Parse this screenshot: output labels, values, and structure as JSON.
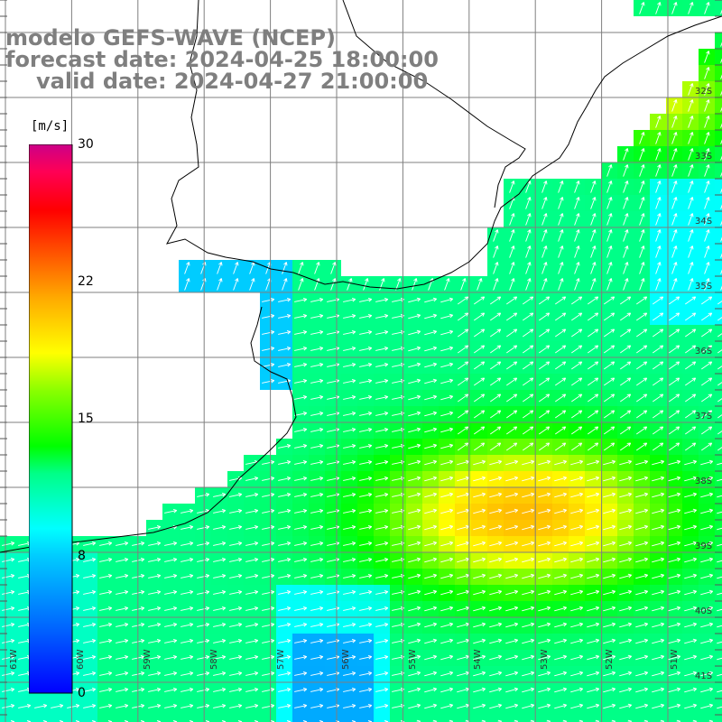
{
  "title": {
    "line1": "modelo GEFS-WAVE (NCEP)",
    "line2": "forecast date: 2024-04-25 18:00:00",
    "line3": "valid date: 2024-04-27 21:00:00"
  },
  "colorbar": {
    "unit": "[m/s]",
    "ticks": [
      "30",
      "22",
      "15",
      "8",
      "0"
    ],
    "colors": [
      "#0000ff",
      "#00aaff",
      "#00ffff",
      "#00ff80",
      "#00ff00",
      "#80ff00",
      "#ffff00",
      "#ffaa00",
      "#ff5500",
      "#ff0000",
      "#ff0066",
      "#cc0088"
    ]
  },
  "lat_labels": [
    "32S",
    "33S",
    "34S",
    "35S",
    "36S",
    "37S",
    "38S",
    "39S",
    "40S",
    "41S"
  ],
  "lon_labels": [
    "61W",
    "60W",
    "59W",
    "58W",
    "57W",
    "56W",
    "55W",
    "54W",
    "53W",
    "52W",
    "51W"
  ],
  "colors": {
    "land": "#ffffff",
    "coast": "#000000",
    "grid": "#7f7f7f",
    "arrows": "#ffffff",
    "title": "#7f7f7f"
  }
}
